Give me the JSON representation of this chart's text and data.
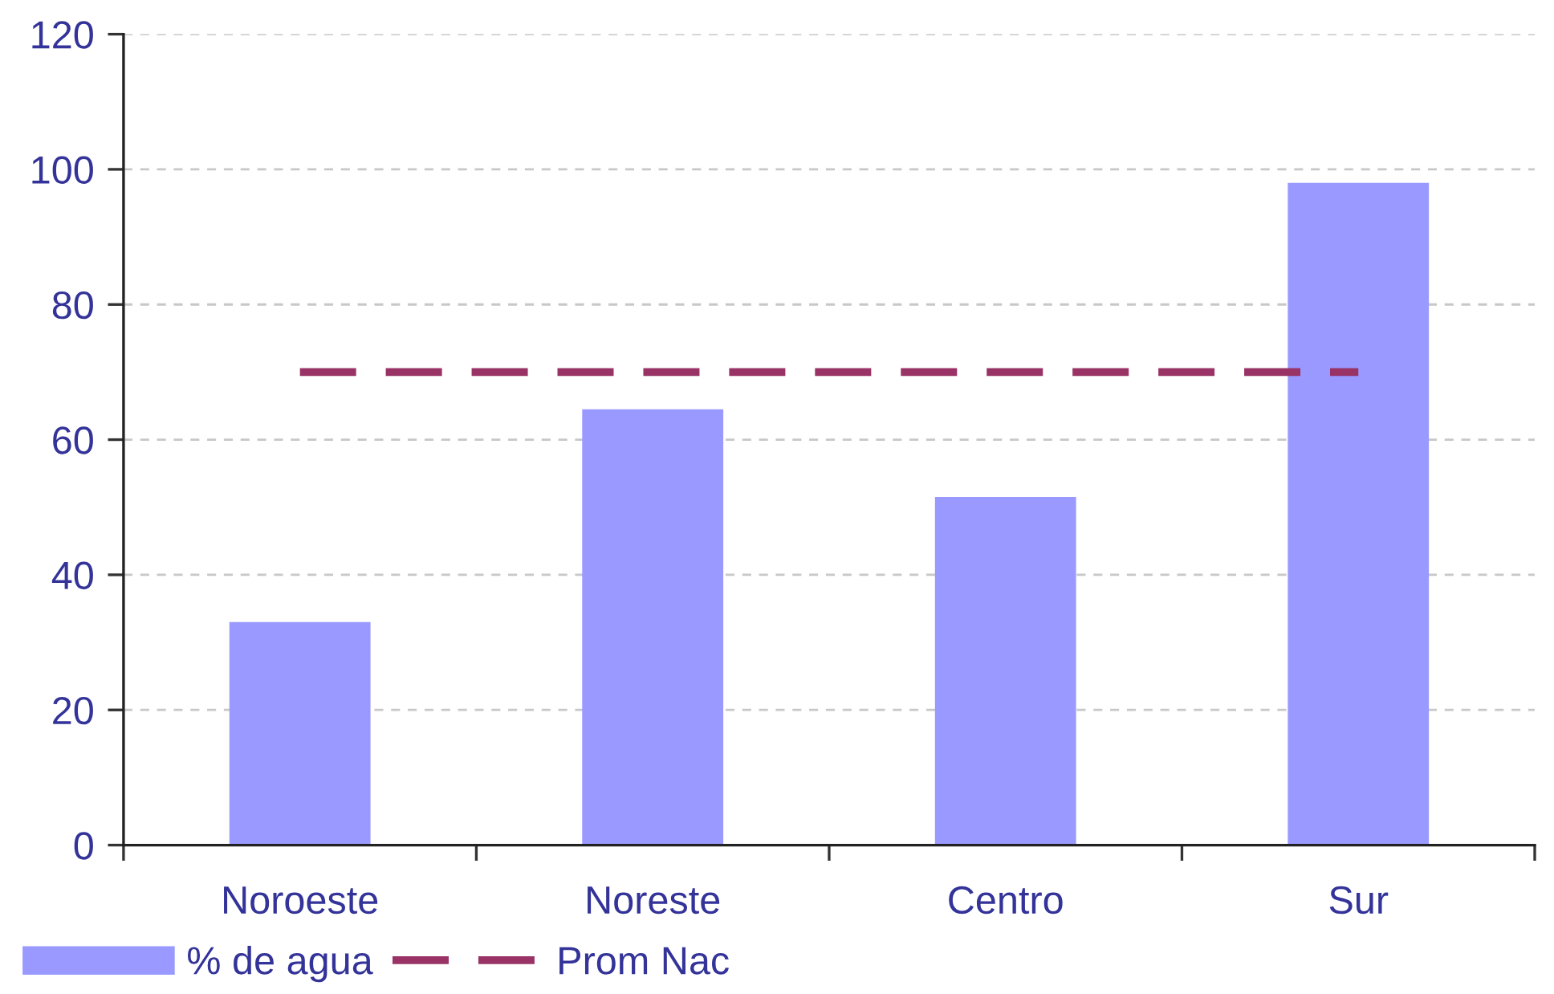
{
  "chart_data": {
    "type": "bar",
    "categories": [
      "Noroeste",
      "Noreste",
      "Centro",
      "Sur"
    ],
    "series": [
      {
        "name": "% de agua",
        "color": "#9999ff",
        "values": [
          33,
          64.5,
          51.5,
          98
        ]
      },
      {
        "name": "Prom Nac",
        "type": "line",
        "color": "#993366",
        "line_style": "dashed",
        "values": [
          70,
          70,
          70,
          70
        ]
      }
    ],
    "ylim": [
      0,
      120
    ],
    "yticks": [
      0,
      20,
      40,
      60,
      80,
      100,
      120
    ],
    "grid": "y",
    "legend": "bottom left"
  }
}
